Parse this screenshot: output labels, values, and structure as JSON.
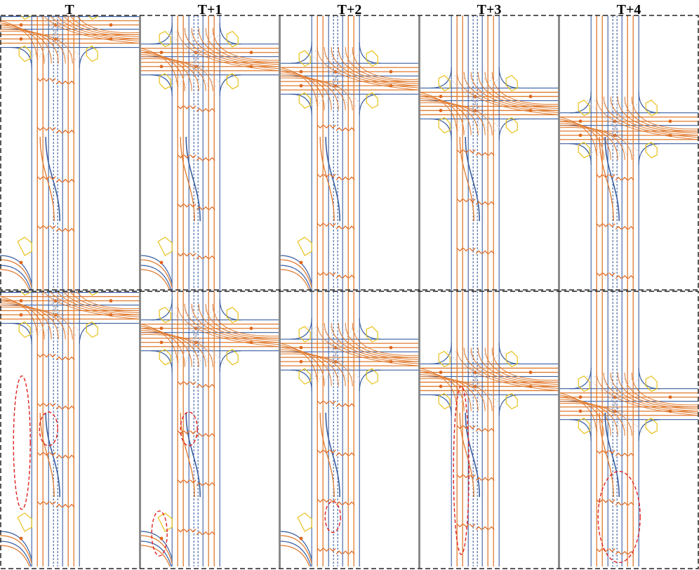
{
  "figure": {
    "columns": [
      "T",
      "T+1",
      "T+2",
      "T+3",
      "T+4"
    ],
    "rows": 2,
    "colors": {
      "lane_divider": "#3b5fa0",
      "lane_centerline": "#e07a2e",
      "arrow": "#e0651a",
      "crosswalk": "#e8c21a",
      "connector": "#b7b7c4",
      "frame": "#222222",
      "separator": "#8a8a8a",
      "highlight": "#e02020"
    },
    "intersection_top_position": [
      0.06,
      0.16,
      0.23,
      0.32,
      0.41
    ],
    "lower_intersection_visible": [
      true,
      true,
      true,
      false,
      false
    ]
  }
}
